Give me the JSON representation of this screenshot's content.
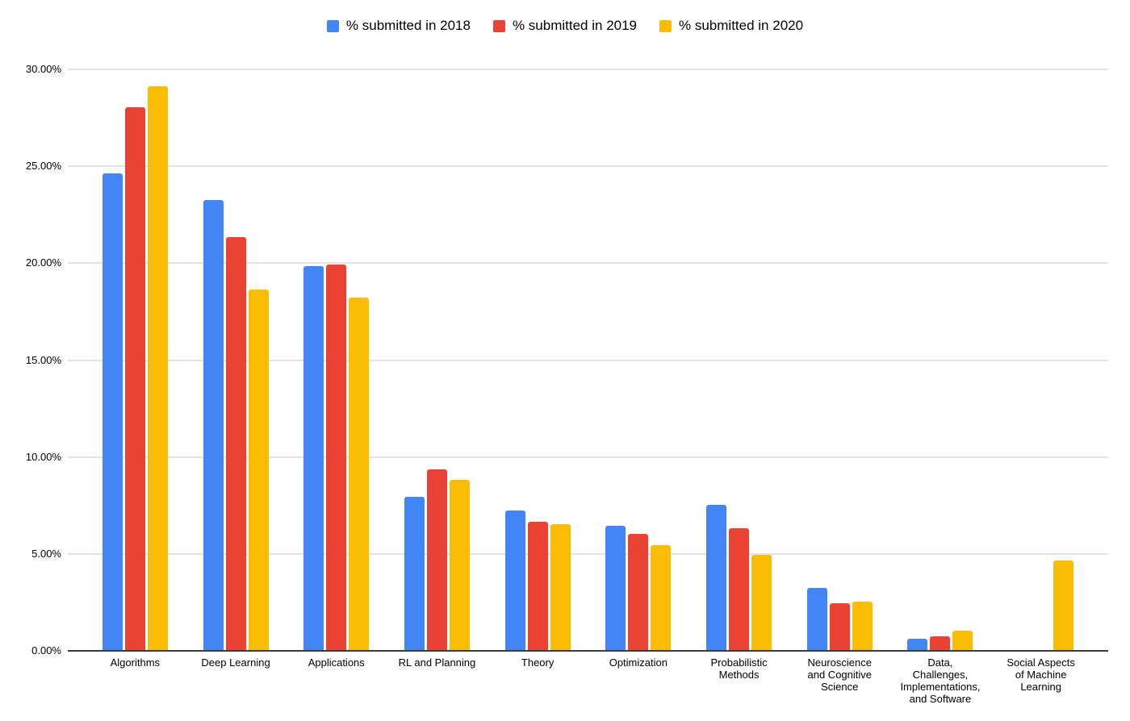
{
  "legend": {
    "items": [
      {
        "label": "% submitted in 2018",
        "color": "#4285F4"
      },
      {
        "label": "% submitted in 2019",
        "color": "#EA4335"
      },
      {
        "label": "% submitted in 2020",
        "color": "#FBBC04"
      }
    ]
  },
  "chart_data": {
    "type": "bar",
    "title": "",
    "xlabel": "",
    "ylabel": "",
    "ylim": [
      0,
      30
    ],
    "grid": true,
    "legend_position": "top",
    "y_tick_labels": [
      "0.00%",
      "5.00%",
      "10.00%",
      "15.00%",
      "20.00%",
      "25.00%",
      "30.00%"
    ],
    "y_tick_values": [
      0,
      5,
      10,
      15,
      20,
      25,
      30
    ],
    "categories": [
      "Algorithms",
      "Deep Learning",
      "Applications",
      "RL and Planning",
      "Theory",
      "Optimization",
      "Probabilistic Methods",
      "Neuroscience and Cognitive Science",
      "Data, Challenges, Implementations, and Software",
      "Social Aspects of Machine Learning"
    ],
    "category_tick_lines": [
      [
        "Algorithms"
      ],
      [
        "Deep Learning"
      ],
      [
        "Applications"
      ],
      [
        "RL and Planning"
      ],
      [
        "Theory"
      ],
      [
        "Optimization"
      ],
      [
        "Probabilistic",
        "Methods"
      ],
      [
        "Neuroscience",
        "and Cognitive",
        "Science"
      ],
      [
        "Data,",
        "Challenges,",
        "Implementations,",
        "and Software"
      ],
      [
        "Social Aspects",
        "of Machine",
        "Learning"
      ]
    ],
    "series": [
      {
        "name": "% submitted in 2018",
        "color": "#4285F4",
        "values": [
          24.6,
          23.2,
          19.8,
          7.9,
          7.2,
          6.4,
          7.5,
          3.2,
          0.6,
          0
        ]
      },
      {
        "name": "% submitted in 2019",
        "color": "#EA4335",
        "values": [
          28.0,
          21.3,
          19.9,
          9.3,
          6.6,
          6.0,
          6.3,
          2.4,
          0.7,
          0
        ]
      },
      {
        "name": "% submitted in 2020",
        "color": "#FBBC04",
        "values": [
          29.1,
          18.6,
          18.2,
          8.8,
          6.5,
          5.4,
          4.9,
          2.5,
          1.0,
          4.6
        ]
      }
    ]
  }
}
